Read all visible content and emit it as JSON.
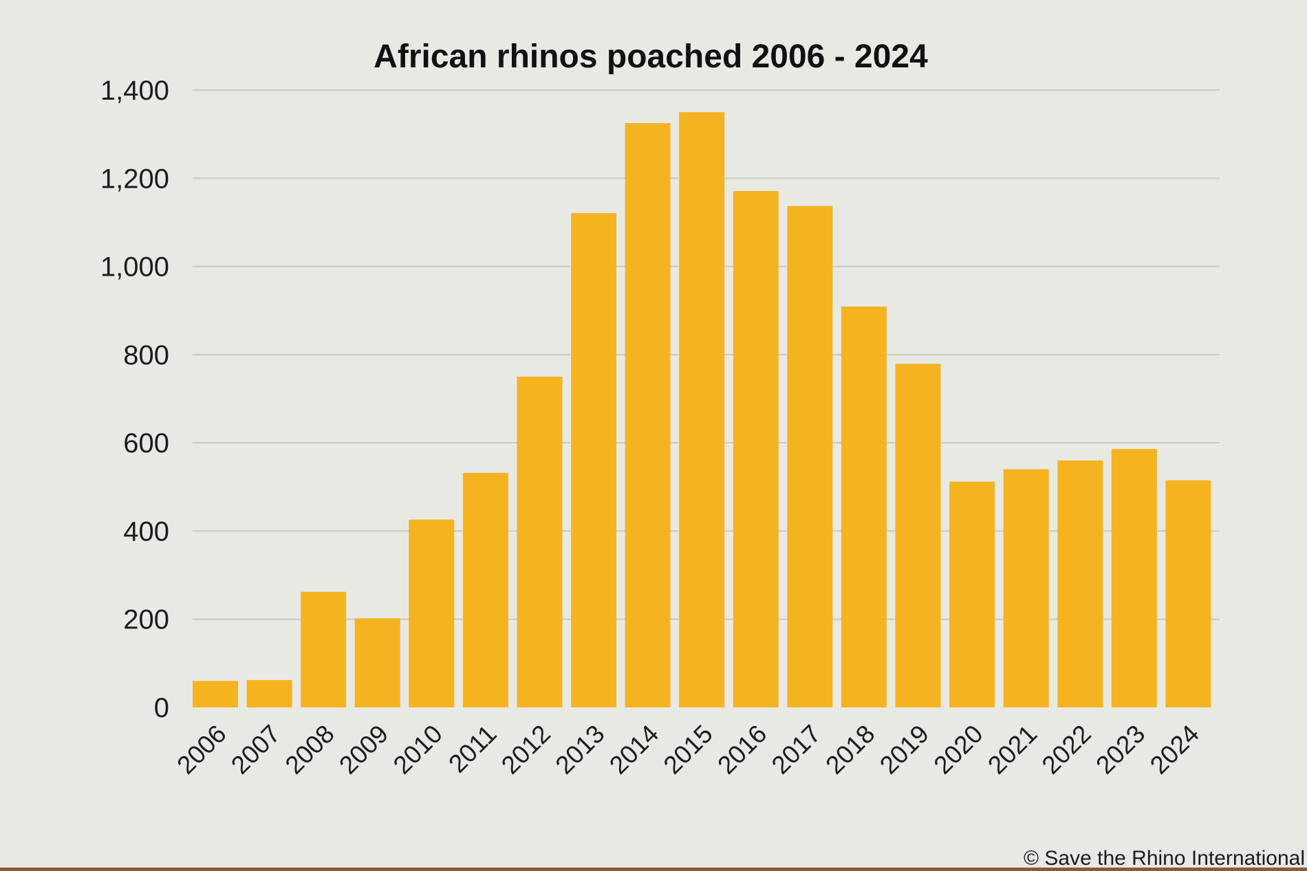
{
  "chart_data": {
    "type": "bar",
    "title": "African rhinos poached 2006 - 2024",
    "xlabel": "",
    "ylabel": "",
    "categories": [
      "2006",
      "2007",
      "2008",
      "2009",
      "2010",
      "2011",
      "2012",
      "2013",
      "2014",
      "2015",
      "2016",
      "2017",
      "2018",
      "2019",
      "2020",
      "2021",
      "2022",
      "2023",
      "2024"
    ],
    "values": [
      60,
      62,
      262,
      202,
      426,
      532,
      750,
      1121,
      1325,
      1350,
      1171,
      1137,
      909,
      779,
      512,
      540,
      560,
      586,
      515
    ],
    "ylim": [
      0,
      1400
    ],
    "yticks": [
      0,
      200,
      400,
      600,
      800,
      1000,
      1200,
      1400
    ],
    "ytick_labels": [
      "0",
      "200",
      "400",
      "600",
      "800",
      "1,000",
      "1,200",
      "1,400"
    ],
    "grid": true,
    "bar_color": "#f5b31f",
    "background_color": "#e9e9e4",
    "credit": "© Save the Rhino International"
  }
}
